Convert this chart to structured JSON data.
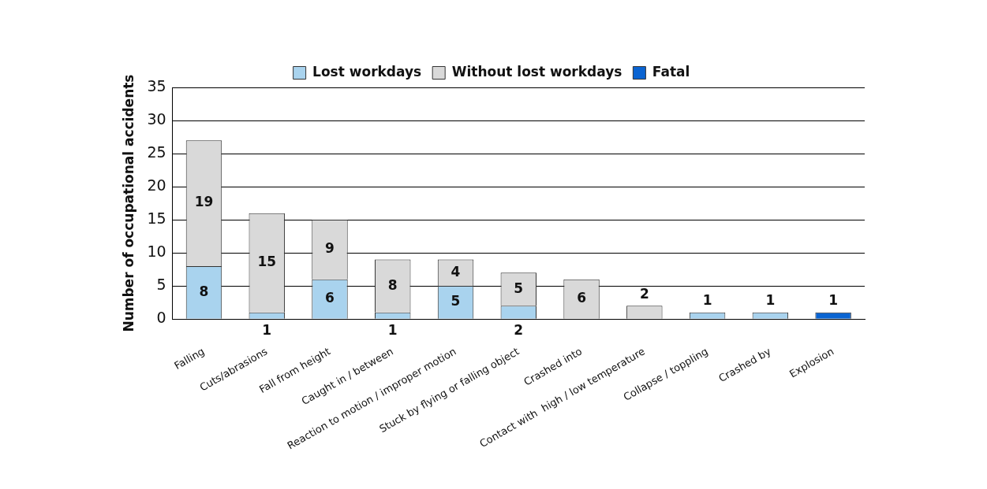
{
  "chart_data": {
    "type": "bar",
    "stacked": true,
    "ylabel": "Number of occupational accidents",
    "categories": [
      "Falling",
      "Cuts/abrasions",
      "Fall from height",
      "Caught in / between",
      "Reaction to motion / improper motion",
      "Stuck by flying or falling object",
      "Crashed into",
      "Contact with  high / low temperature",
      "Collapse / toppling",
      "Crashed by",
      "Explosion"
    ],
    "series": [
      {
        "name": "Lost workdays",
        "color": "#a9d3ee",
        "values": [
          8,
          1,
          6,
          1,
          5,
          2,
          null,
          null,
          1,
          1,
          null
        ]
      },
      {
        "name": "Without lost workdays",
        "color": "#d9d9d9",
        "values": [
          19,
          15,
          9,
          8,
          4,
          5,
          6,
          2,
          null,
          null,
          null
        ]
      },
      {
        "name": "Fatal",
        "color": "#0a64d2",
        "values": [
          null,
          null,
          null,
          null,
          null,
          null,
          null,
          null,
          null,
          null,
          1
        ]
      }
    ],
    "ylim": [
      0,
      35
    ],
    "yticks": [
      0,
      5,
      10,
      15,
      20,
      25,
      30,
      35
    ],
    "grid": "y",
    "legend": "top",
    "data_labels": true
  }
}
